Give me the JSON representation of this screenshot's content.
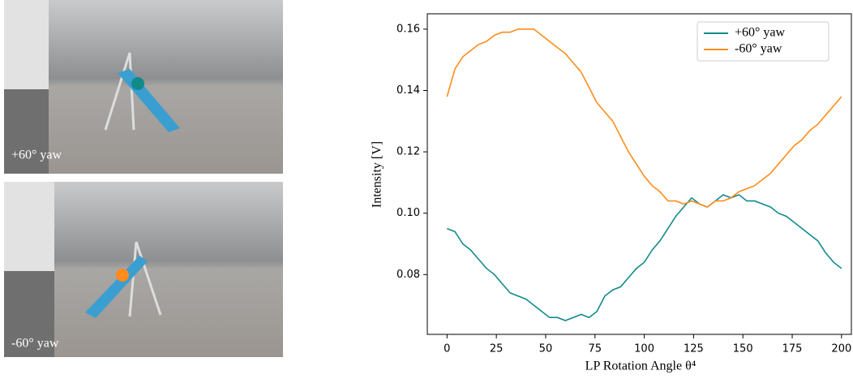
{
  "images": [
    {
      "label": "+60° yaw"
    },
    {
      "label": "-60° yaw"
    }
  ],
  "chart_data": {
    "type": "line",
    "x_label": "LP  Rotation Angle θ⁴",
    "y_label": "Intensity [V]",
    "x": [
      0,
      4,
      8,
      12,
      16,
      20,
      24,
      28,
      32,
      36,
      40,
      44,
      48,
      52,
      56,
      60,
      64,
      68,
      72,
      76,
      80,
      84,
      88,
      92,
      96,
      100,
      104,
      108,
      112,
      116,
      120,
      124,
      128,
      132,
      136,
      140,
      144,
      148,
      152,
      156,
      160,
      164,
      168,
      172,
      176,
      180,
      184,
      188,
      192,
      196,
      200
    ],
    "series": [
      {
        "name": "+60° yaw",
        "color": "#138a8a",
        "values": [
          0.095,
          0.094,
          0.09,
          0.088,
          0.085,
          0.082,
          0.08,
          0.077,
          0.074,
          0.073,
          0.072,
          0.07,
          0.068,
          0.066,
          0.066,
          0.065,
          0.066,
          0.067,
          0.066,
          0.068,
          0.073,
          0.075,
          0.076,
          0.079,
          0.082,
          0.084,
          0.088,
          0.091,
          0.095,
          0.099,
          0.102,
          0.105,
          0.103,
          0.102,
          0.104,
          0.106,
          0.105,
          0.106,
          0.104,
          0.104,
          0.103,
          0.102,
          0.1,
          0.099,
          0.097,
          0.095,
          0.093,
          0.091,
          0.087,
          0.084,
          0.082
        ]
      },
      {
        "name": "-60° yaw",
        "color": "#ff8c1a",
        "values": [
          0.138,
          0.147,
          0.151,
          0.153,
          0.155,
          0.156,
          0.158,
          0.159,
          0.159,
          0.16,
          0.16,
          0.16,
          0.158,
          0.156,
          0.154,
          0.152,
          0.149,
          0.146,
          0.141,
          0.136,
          0.133,
          0.13,
          0.125,
          0.12,
          0.116,
          0.112,
          0.109,
          0.107,
          0.104,
          0.104,
          0.103,
          0.104,
          0.103,
          0.102,
          0.104,
          0.104,
          0.105,
          0.107,
          0.108,
          0.109,
          0.111,
          0.113,
          0.116,
          0.119,
          0.122,
          0.124,
          0.127,
          0.129,
          0.132,
          0.135,
          0.138
        ]
      }
    ],
    "xlim": [
      -10,
      205
    ],
    "xticks": [
      0,
      25,
      50,
      75,
      100,
      125,
      150,
      175,
      200
    ],
    "ylim": [
      0.0605,
      0.165
    ],
    "yticks": [
      0.08,
      {
        "value": 0.1,
        "label": "0.10"
      },
      0.12,
      0.14,
      0.16
    ],
    "grid": false,
    "legend": "upper right"
  }
}
